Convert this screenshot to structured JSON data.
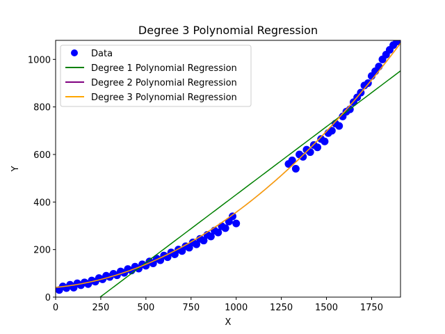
{
  "chart_data": {
    "type": "scatter",
    "title": "Degree 3 Polynomial Regression",
    "xlabel": "X",
    "ylabel": "Y",
    "xlim": [
      0,
      1910
    ],
    "ylim": [
      0,
      1080
    ],
    "xticks": [
      0,
      250,
      500,
      750,
      1000,
      1250,
      1500,
      1750
    ],
    "yticks": [
      0,
      200,
      400,
      600,
      800,
      1000
    ],
    "grid": false,
    "legend_position": "upper-left",
    "legend": [
      "Data",
      "Degree 1 Polynomial Regression",
      "Degree 2 Polynomial Regression",
      "Degree 3 Polynomial Regression"
    ],
    "scatter": {
      "name": "Data",
      "color": "#0000ff",
      "points": [
        [
          20,
          30
        ],
        [
          40,
          45
        ],
        [
          60,
          38
        ],
        [
          80,
          52
        ],
        [
          100,
          40
        ],
        [
          120,
          58
        ],
        [
          140,
          50
        ],
        [
          160,
          62
        ],
        [
          180,
          55
        ],
        [
          200,
          70
        ],
        [
          220,
          65
        ],
        [
          240,
          80
        ],
        [
          260,
          75
        ],
        [
          280,
          90
        ],
        [
          300,
          85
        ],
        [
          320,
          98
        ],
        [
          340,
          92
        ],
        [
          360,
          108
        ],
        [
          380,
          102
        ],
        [
          400,
          118
        ],
        [
          420,
          112
        ],
        [
          440,
          128
        ],
        [
          460,
          120
        ],
        [
          480,
          138
        ],
        [
          500,
          132
        ],
        [
          520,
          150
        ],
        [
          540,
          142
        ],
        [
          560,
          162
        ],
        [
          580,
          155
        ],
        [
          600,
          175
        ],
        [
          620,
          168
        ],
        [
          640,
          188
        ],
        [
          660,
          180
        ],
        [
          680,
          200
        ],
        [
          700,
          194
        ],
        [
          720,
          214
        ],
        [
          740,
          208
        ],
        [
          760,
          230
        ],
        [
          780,
          222
        ],
        [
          800,
          245
        ],
        [
          820,
          238
        ],
        [
          840,
          262
        ],
        [
          860,
          255
        ],
        [
          880,
          280
        ],
        [
          900,
          272
        ],
        [
          920,
          298
        ],
        [
          940,
          290
        ],
        [
          960,
          318
        ],
        [
          980,
          340
        ],
        [
          1000,
          310
        ],
        [
          1290,
          560
        ],
        [
          1310,
          575
        ],
        [
          1330,
          540
        ],
        [
          1350,
          600
        ],
        [
          1370,
          590
        ],
        [
          1390,
          620
        ],
        [
          1410,
          610
        ],
        [
          1430,
          640
        ],
        [
          1450,
          630
        ],
        [
          1470,
          665
        ],
        [
          1490,
          655
        ],
        [
          1510,
          690
        ],
        [
          1530,
          700
        ],
        [
          1550,
          730
        ],
        [
          1570,
          720
        ],
        [
          1590,
          760
        ],
        [
          1610,
          780
        ],
        [
          1630,
          790
        ],
        [
          1650,
          820
        ],
        [
          1670,
          840
        ],
        [
          1690,
          860
        ],
        [
          1710,
          890
        ],
        [
          1730,
          900
        ],
        [
          1750,
          930
        ],
        [
          1770,
          950
        ],
        [
          1790,
          970
        ],
        [
          1810,
          1000
        ],
        [
          1830,
          1020
        ],
        [
          1850,
          1040
        ],
        [
          1870,
          1060
        ],
        [
          1890,
          1075
        ]
      ]
    },
    "series": [
      {
        "name": "Degree 1 Polynomial Regression",
        "color": "#008000",
        "degree": 1,
        "coefficients": [
          -141,
          0.572
        ]
      },
      {
        "name": "Degree 2 Polynomial Regression",
        "color": "#800080",
        "degree": 2,
        "coefficients": [
          41,
          0.0725,
          0.0002435
        ]
      },
      {
        "name": "Degree 3 Polynomial Regression",
        "color": "#ffa500",
        "degree": 3,
        "coefficients": [
          41,
          0.0725,
          0.0002435,
          0
        ]
      }
    ]
  }
}
